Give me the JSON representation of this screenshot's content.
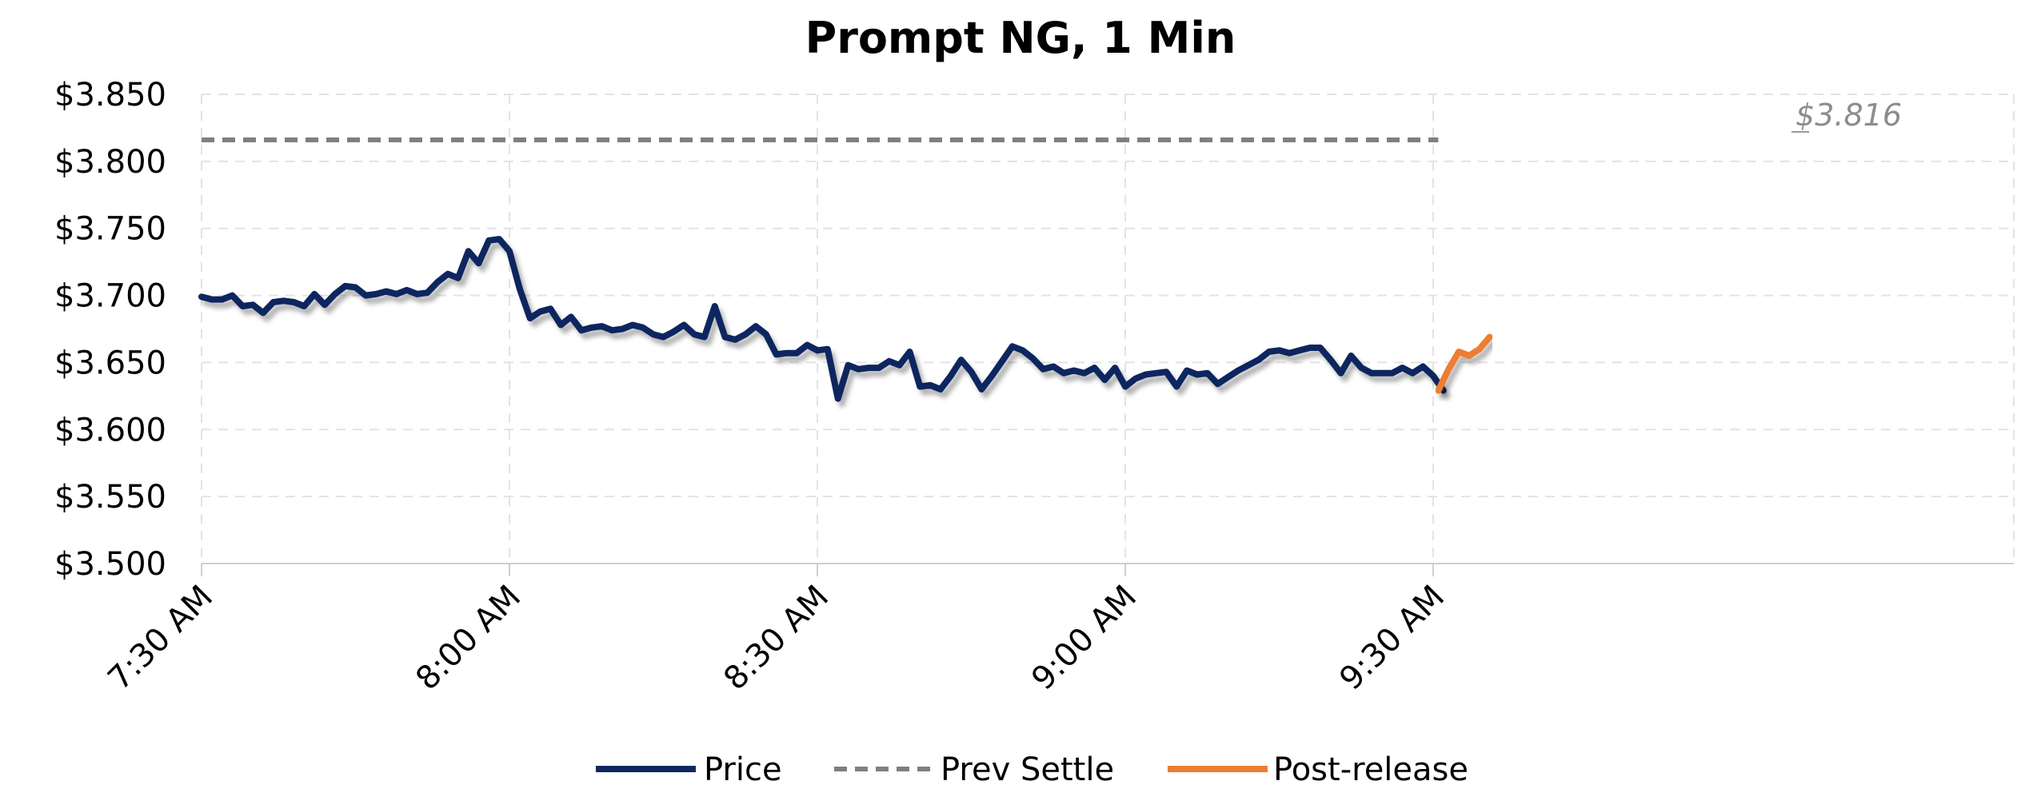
{
  "chart_data": {
    "type": "line",
    "title": "Prompt NG, 1 Min",
    "xlabel": "",
    "ylabel": "",
    "ylim": [
      3.5,
      3.85
    ],
    "x_start": "7:30 AM",
    "x_interval_minutes": 1,
    "x_ticks": [
      {
        "label": "7:30 AM",
        "minute": 0
      },
      {
        "label": "8:00 AM",
        "minute": 30
      },
      {
        "label": "8:30 AM",
        "minute": 60
      },
      {
        "label": "9:00 AM",
        "minute": 90
      },
      {
        "label": "9:30 AM",
        "minute": 120
      }
    ],
    "x_max_minute": 125.5,
    "y_ticks": [
      "$3.850",
      "$3.800",
      "$3.750",
      "$3.700",
      "$3.650",
      "$3.600",
      "$3.550",
      "$3.500"
    ],
    "y_tick_values": [
      3.85,
      3.8,
      3.75,
      3.7,
      3.65,
      3.6,
      3.55,
      3.5
    ],
    "grid": true,
    "legend_position": "bottom",
    "series": [
      {
        "name": "Price",
        "color": "#10275f",
        "start_minute": 0,
        "values": [
          3.699,
          3.697,
          3.697,
          3.7,
          3.692,
          3.693,
          3.687,
          3.695,
          3.696,
          3.695,
          3.692,
          3.701,
          3.693,
          3.701,
          3.707,
          3.706,
          3.7,
          3.701,
          3.703,
          3.701,
          3.704,
          3.701,
          3.702,
          3.71,
          3.716,
          3.713,
          3.733,
          3.724,
          3.741,
          3.742,
          3.733,
          3.705,
          3.683,
          3.688,
          3.69,
          3.678,
          3.684,
          3.674,
          3.676,
          3.677,
          3.674,
          3.675,
          3.678,
          3.676,
          3.671,
          3.669,
          3.673,
          3.678,
          3.671,
          3.669,
          3.692,
          3.669,
          3.667,
          3.671,
          3.677,
          3.671,
          3.656,
          3.657,
          3.657,
          3.663,
          3.659,
          3.66,
          3.623,
          3.648,
          3.645,
          3.646,
          3.646,
          3.651,
          3.648,
          3.658,
          3.632,
          3.633,
          3.63,
          3.64,
          3.652,
          3.643,
          3.63,
          3.64,
          3.651,
          3.662,
          3.659,
          3.653,
          3.645,
          3.647,
          3.642,
          3.644,
          3.642,
          3.646,
          3.637,
          3.646,
          3.632,
          3.638,
          3.641,
          3.642,
          3.643,
          3.632,
          3.644,
          3.641,
          3.642,
          3.634,
          3.639,
          3.644,
          3.648,
          3.652,
          3.658,
          3.659,
          3.657,
          3.659,
          3.661,
          3.661,
          3.652,
          3.642,
          3.655,
          3.646,
          3.642,
          3.642,
          3.642,
          3.646,
          3.642,
          3.647,
          3.64,
          3.629
        ]
      },
      {
        "name": "Prev Settle",
        "color": "#7f7f7f",
        "dashed": true,
        "constant": 3.816,
        "from_minute": 0,
        "to_minute": 120.5
      },
      {
        "name": "Post-release",
        "color": "#ed7d31",
        "start_minute": 120.5,
        "values": [
          3.629,
          3.645,
          3.658,
          3.655,
          3.66,
          3.669
        ]
      }
    ],
    "annotations": [
      {
        "text": "$3.816",
        "near_series": "Prev Settle"
      }
    ]
  }
}
